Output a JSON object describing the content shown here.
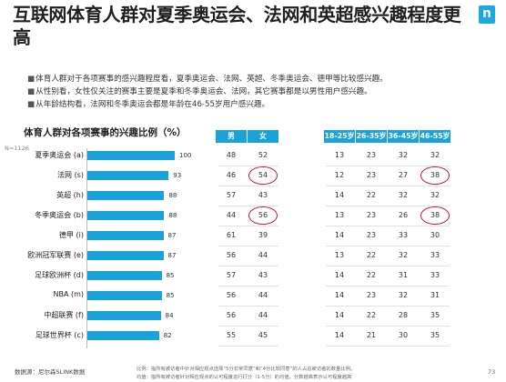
{
  "title": "互联网体育人群对夏季奥运会、法网和英超感兴趣程度更高",
  "logo_text": "n",
  "bullets": [
    "体育人群对于各项赛事的感兴趣程度看，夏季奥运会、法网、英超、冬季奥运会、德甲等比较感兴趣。",
    "从性别看，女性仅关注的赛事主要是夏季和冬季奥运会、法网，其它赛事都是以男性用户感兴趣。",
    "从年龄结构看，法网和冬季奥运会都是年龄在46-55岁用户感兴趣。"
  ],
  "chart_data": {
    "type": "bar",
    "orientation": "horizontal",
    "title": "体育人群对各项赛事的兴趣比例（%）",
    "sample_note": "N=1126",
    "categories": [
      "夏季奥运会 (a)",
      "法网 (s)",
      "英超 (h)",
      "冬季奥运会 (b)",
      "德甲 (i)",
      "欧洲冠军联赛 (e)",
      "足球欧洲杯 (d)",
      "NBA (m)",
      "中超联赛 (f)",
      "足球世界杯 (c)"
    ],
    "values": [
      100,
      93,
      88,
      88,
      87,
      87,
      85,
      85,
      84,
      82
    ],
    "xlim": [
      0,
      100
    ]
  },
  "table": {
    "gender_headers": [
      "男",
      "女"
    ],
    "age_headers": [
      "18-25岁",
      "26-35岁",
      "36-45岁",
      "46-55岁"
    ],
    "rows": [
      {
        "male": "48",
        "female": "52",
        "a1825": "13",
        "a2635": "23",
        "a3645": "32",
        "a4655": "32"
      },
      {
        "male": "46",
        "female": "54",
        "a1825": "12",
        "a2635": "23",
        "a3645": "27",
        "a4655": "38"
      },
      {
        "male": "57",
        "female": "43",
        "a1825": "14",
        "a2635": "22",
        "a3645": "32",
        "a4655": "32"
      },
      {
        "male": "44",
        "female": "56",
        "a1825": "13",
        "a2635": "23",
        "a3645": "26",
        "a4655": "38"
      },
      {
        "male": "61",
        "female": "39",
        "a1825": "14",
        "a2635": "23",
        "a3645": "33",
        "a4655": "30"
      },
      {
        "male": "56",
        "female": "44",
        "a1825": "13",
        "a2635": "22",
        "a3645": "32",
        "a4655": "33"
      },
      {
        "male": "57",
        "female": "43",
        "a1825": "14",
        "a2635": "22",
        "a3645": "31",
        "a4655": "33"
      },
      {
        "male": "56",
        "female": "44",
        "a1825": "14",
        "a2635": "23",
        "a3645": "32",
        "a4655": "31"
      },
      {
        "male": "56",
        "female": "44",
        "a1825": "14",
        "a2635": "22",
        "a3645": "28",
        "a4655": "35"
      },
      {
        "male": "55",
        "female": "45",
        "a1825": "14",
        "a2635": "21",
        "a3645": "30",
        "a4655": "35"
      }
    ],
    "highlighted": [
      {
        "row": 1,
        "col": "female"
      },
      {
        "row": 3,
        "col": "female"
      },
      {
        "row": 1,
        "col": "a4655"
      },
      {
        "row": 3,
        "col": "a4655"
      }
    ]
  },
  "source": "数据源：尼尔森SLINK数据",
  "footnotes": [
    "比例：指所有被访者中针对相应观点选择“5分非常同意”和“4分比较同意”的人占总被访者的数量比例。",
    "均值：指所有被访者针对相应观点的认可程度进行打分（1-5分）的均值，分数越高表示认可程度越高"
  ],
  "page_number": "73",
  "colors": {
    "accent": "#1aa3d9",
    "highlight": "#c0182e"
  }
}
